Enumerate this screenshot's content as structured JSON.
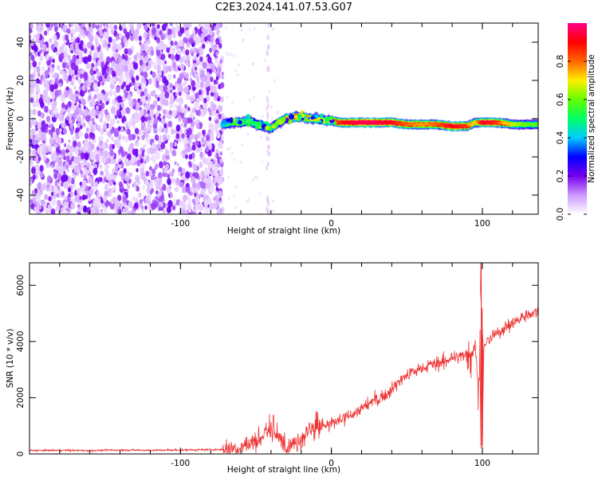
{
  "title": "C2E3.2024.141.07.53.G07",
  "chart_data": [
    {
      "type": "heatmap",
      "xlabel": "Height of straight line (km)",
      "ylabel": "Frequency (Hz)",
      "xlim": [
        -200,
        137
      ],
      "ylim": [
        -50,
        50
      ],
      "xticks": [
        -100,
        0,
        100
      ],
      "yticks": [
        -40,
        -20,
        0,
        20,
        40
      ],
      "colorbar": {
        "label": "Normalized spectral amplitude",
        "range": [
          0,
          1
        ],
        "ticks": [
          "0.0",
          "0.2",
          "0.4",
          "0.6",
          "0.8"
        ],
        "colors": [
          "#ffffff",
          "#cc99ff",
          "#7700ee",
          "#0000ff",
          "#00ccff",
          "#00ff66",
          "#66ff00",
          "#ffee00",
          "#ff6600",
          "#ff0000",
          "#ff0088"
        ]
      },
      "noise_region_x": [
        -200,
        -72
      ],
      "signal_track": {
        "x": [
          -72,
          -65,
          -60,
          -55,
          -50,
          -45,
          -40,
          -35,
          -30,
          -25,
          -20,
          -15,
          -10,
          -5,
          0,
          5,
          10,
          20,
          30,
          40,
          50,
          60,
          70,
          80,
          90,
          95,
          100,
          110,
          120,
          130,
          137
        ],
        "freq": [
          -3,
          -2,
          -2,
          -1,
          -3,
          -4,
          -5,
          -2,
          0,
          1,
          1,
          0,
          0,
          -1,
          -1,
          -2,
          -2,
          -2,
          -2,
          -2,
          -3,
          -3,
          -3,
          -4,
          -4,
          -2,
          -2,
          -2,
          -3,
          -3,
          -3
        ],
        "amplitude": [
          0.45,
          0.5,
          0.5,
          0.45,
          0.45,
          0.4,
          0.5,
          0.55,
          0.65,
          0.7,
          0.7,
          0.65,
          0.6,
          0.6,
          0.75,
          0.85,
          0.9,
          0.95,
          0.95,
          0.9,
          0.8,
          0.75,
          0.8,
          0.9,
          0.85,
          0.6,
          0.9,
          0.85,
          0.6,
          0.5,
          0.5
        ]
      }
    },
    {
      "type": "line",
      "xlabel": "Height of straight line (km)",
      "ylabel": "SNR (10 * v/v)",
      "xlim": [
        -200,
        137
      ],
      "ylim": [
        0,
        6800
      ],
      "xticks": [
        -100,
        0,
        100
      ],
      "yticks": [
        0,
        2000,
        4000,
        6000
      ],
      "color": "#ee3333",
      "series": [
        {
          "x": [
            -200,
            -180,
            -160,
            -140,
            -120,
            -100,
            -80,
            -70,
            -65,
            -60,
            -55,
            -50,
            -45,
            -40,
            -35,
            -30,
            -25,
            -20,
            -15,
            -10,
            -5,
            0,
            5,
            10,
            15,
            20,
            25,
            30,
            35,
            40,
            45,
            50,
            55,
            60,
            65,
            70,
            75,
            80,
            85,
            90,
            95,
            98,
            99,
            100,
            101,
            102,
            105,
            110,
            115,
            120,
            125,
            130,
            137
          ],
          "y": [
            120,
            130,
            120,
            140,
            130,
            140,
            150,
            160,
            200,
            250,
            350,
            450,
            700,
            800,
            550,
            400,
            300,
            600,
            750,
            900,
            1000,
            1050,
            1200,
            1300,
            1450,
            1600,
            1800,
            1950,
            2100,
            2300,
            2600,
            2800,
            2950,
            3050,
            3150,
            3200,
            3300,
            3400,
            3450,
            3600,
            3700,
            2500,
            6800,
            300,
            3800,
            3900,
            4100,
            4300,
            4500,
            4650,
            4800,
            4950,
            5100
          ]
        }
      ]
    }
  ]
}
